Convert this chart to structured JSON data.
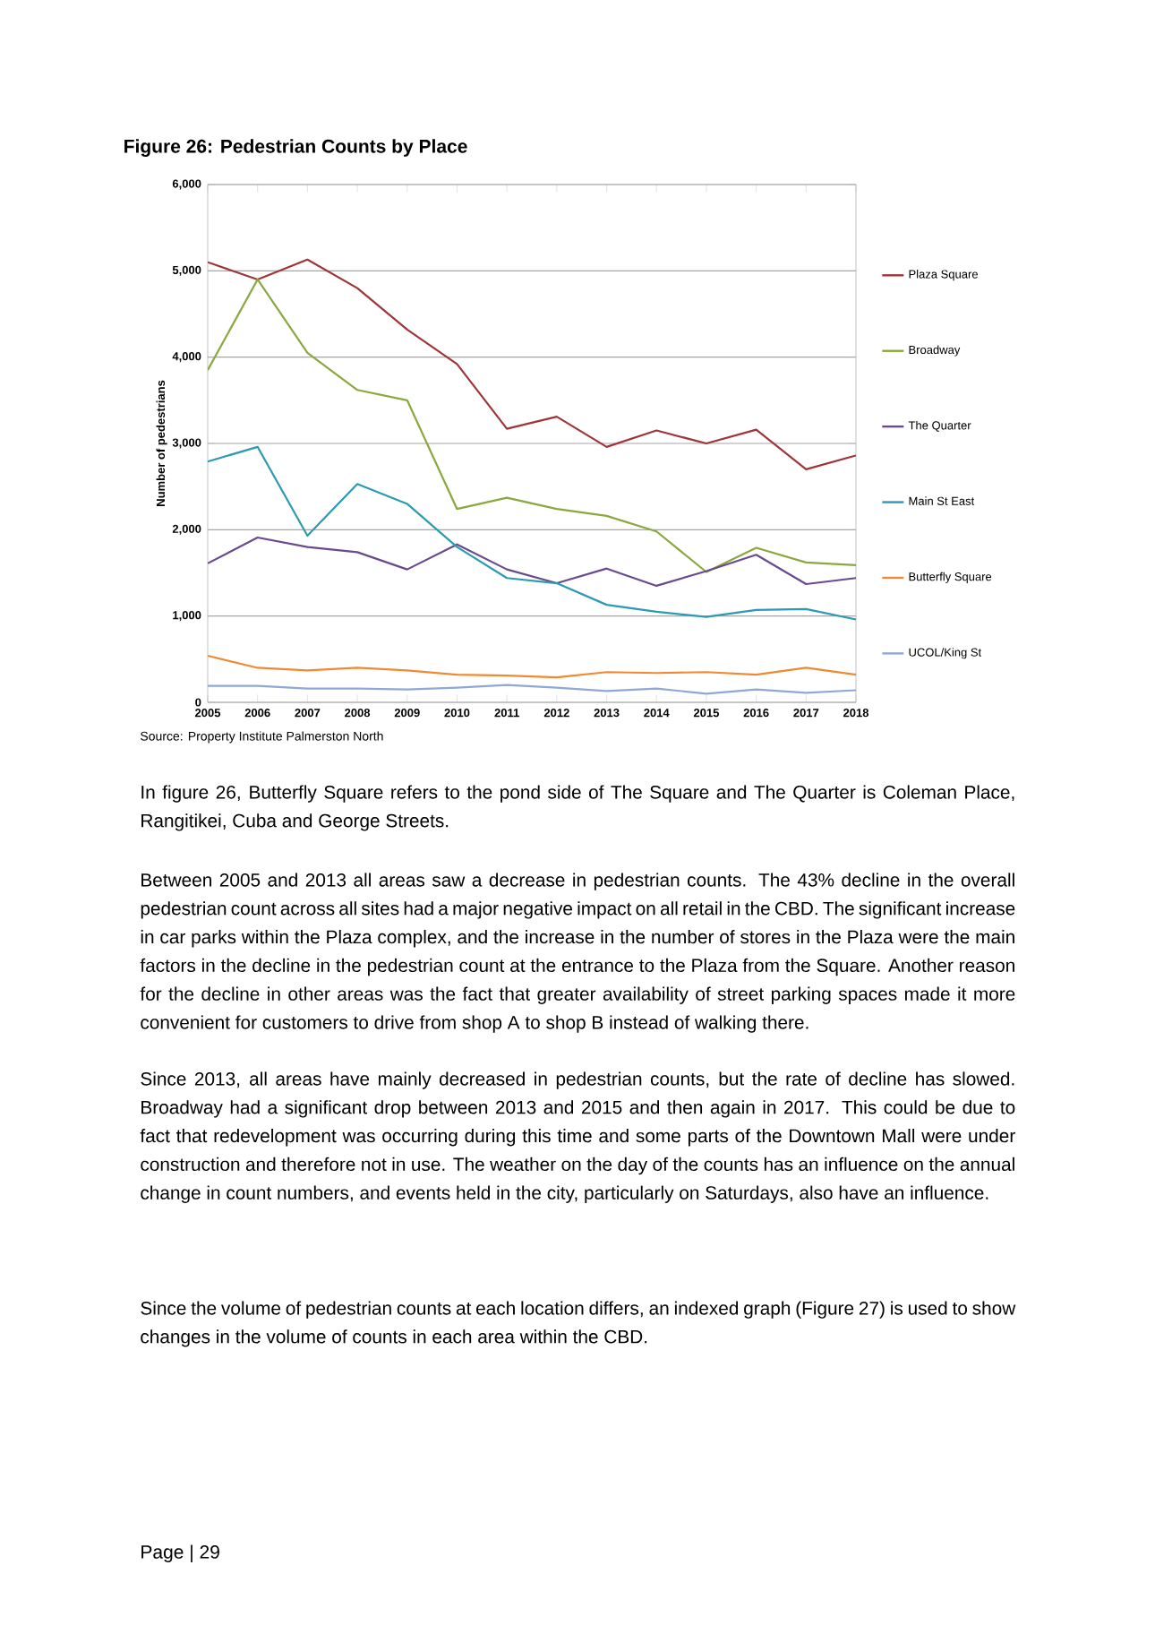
{
  "chart_data": {
    "type": "line",
    "title": "Figure 26: Pedestrian Counts by Place",
    "ylabel": "Number of pedestrians",
    "categories": [
      "2005",
      "2006",
      "2007",
      "2008",
      "2009",
      "2010",
      "2011",
      "2012",
      "2013",
      "2014",
      "2015",
      "2016",
      "2017",
      "2018"
    ],
    "series": [
      {
        "name": "Plaza Square",
        "color": "#a0343a",
        "values": [
          5100,
          4900,
          5130,
          4800,
          4320,
          3920,
          3170,
          3310,
          2960,
          3150,
          3000,
          3160,
          2700,
          2860
        ]
      },
      {
        "name": "Broadway",
        "color": "#8aa83e",
        "values": [
          3850,
          4900,
          4050,
          3620,
          3500,
          2240,
          2370,
          2240,
          2160,
          1980,
          1510,
          1790,
          1620,
          1590
        ]
      },
      {
        "name": "The Quarter",
        "color": "#6a4a8e",
        "values": [
          1610,
          1910,
          1800,
          1740,
          1540,
          1830,
          1540,
          1380,
          1550,
          1350,
          1520,
          1710,
          1370,
          1440
        ]
      },
      {
        "name": "Main St East",
        "color": "#2a9bb0",
        "values": [
          2790,
          2960,
          1930,
          2530,
          2300,
          1800,
          1440,
          1380,
          1130,
          1050,
          990,
          1070,
          1080,
          960
        ]
      },
      {
        "name": "Butterfly Square",
        "color": "#f08a32",
        "values": [
          540,
          400,
          370,
          400,
          370,
          320,
          310,
          290,
          350,
          340,
          350,
          320,
          400,
          320
        ]
      },
      {
        "name": "UCOL/King St",
        "color": "#8fa8d8",
        "values": [
          190,
          190,
          160,
          160,
          150,
          170,
          200,
          170,
          130,
          160,
          100,
          150,
          110,
          140
        ]
      }
    ],
    "ylim": [
      0,
      6000
    ],
    "yticks": [
      {
        "value": 0,
        "label": "0"
      },
      {
        "value": 1000,
        "label": "1,000"
      },
      {
        "value": 2000,
        "label": "2,000"
      },
      {
        "value": 3000,
        "label": "3,000"
      },
      {
        "value": 4000,
        "label": "4,000"
      },
      {
        "value": 5000,
        "label": "5,000"
      },
      {
        "value": 6000,
        "label": "6,000"
      }
    ],
    "grid": "y",
    "legend": "right",
    "annotations": [
      "Source:  Property Institute Palmerston North",
      "In figure 26, Butterfly Square refers to the pond side of The Square and The Quarter is Coleman Place, Rangitikei, Cuba and George Streets.",
      "Between 2005 and 2013 all areas saw a decrease in pedestrian counts. The 43% decline in the overall pedestrian count across all sites had a major negative impact on all retail in the CBD. The significant increase in car parks within the Plaza complex, and the increase in the number of stores in the Plaza were the main factors in the decline in the pedestrian count at the entrance to the Plaza from the Square. Another reason for the decline in other areas was the fact that greater availability of street parking spaces made it more convenient for customers to drive from shop A to shop B instead of walking there.",
      "Since 2013, all areas have mainly decreased in pedestrian counts, but the rate of decline has slowed. Broadway had a significant drop between 2013 and 2015 and then again in 2017. This could be due to fact that redevelopment was occurring during this time and some parts of the Downtown Mall were under construction and therefore not in use.  The weather on the day of the counts has an influence on the annual change in count numbers, and events held in the city, particularly on Saturdays, also have an influence.",
      "Since the volume of pedestrian counts at each location differs, an indexed graph (Figure 27) is used to show changes in the volume of counts in each area within the CBD.",
      "Page | 29"
    ]
  }
}
